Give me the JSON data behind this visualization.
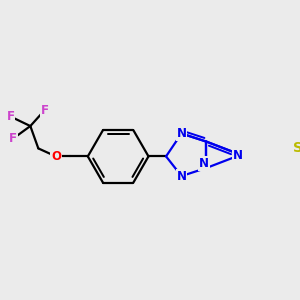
{
  "bg_color": "#ebebeb",
  "bond_color": "#000000",
  "bond_width": 1.6,
  "dbo": 0.012,
  "N_color": "#0000ee",
  "S_color": "#bbbb00",
  "O_color": "#ff0000",
  "F_color": "#cc44cc",
  "font_size": 8.5,
  "figsize": [
    3.0,
    3.0
  ],
  "dpi": 100,
  "xlim": [
    0,
    300
  ],
  "ylim": [
    0,
    300
  ]
}
